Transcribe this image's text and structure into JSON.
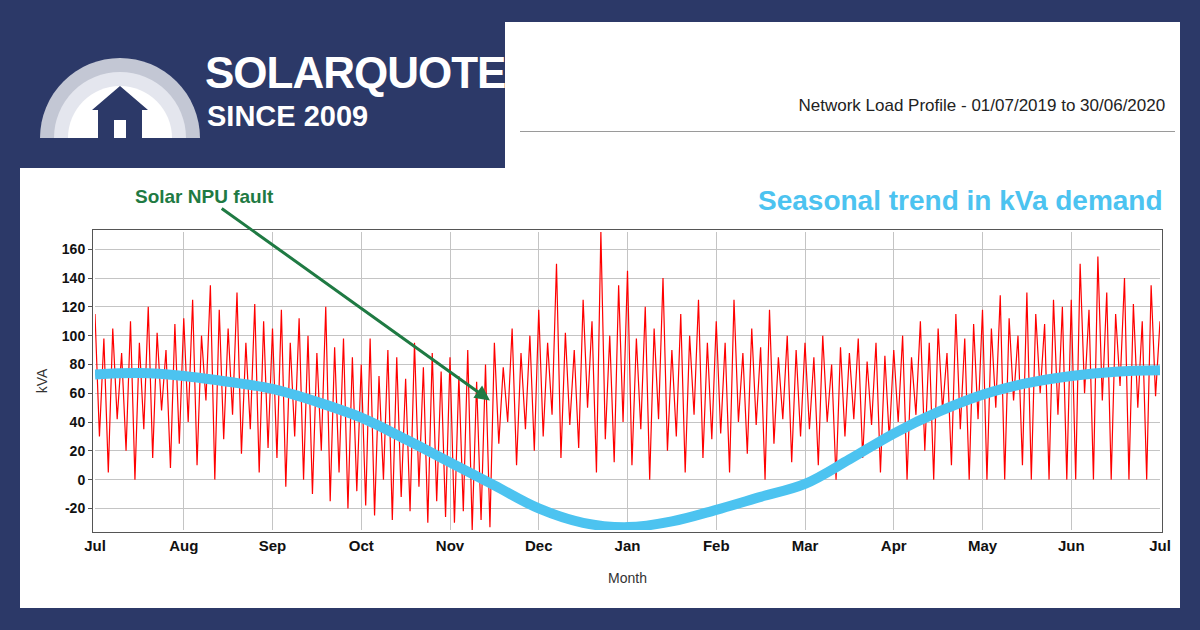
{
  "header": {
    "logo": "SOLARQUOTES®",
    "since": "SINCE 2009"
  },
  "chart_data": {
    "type": "line",
    "title": "Network Load Profile - 01/07/2019 to 30/06/2020",
    "x_label": "Month",
    "y_label": "kVA",
    "xlim": [
      0,
      12
    ],
    "xticks": [
      {
        "value": 0,
        "label": "Jul"
      },
      {
        "value": 1,
        "label": "Aug"
      },
      {
        "value": 2,
        "label": "Sep"
      },
      {
        "value": 3,
        "label": "Oct"
      },
      {
        "value": 4,
        "label": "Nov"
      },
      {
        "value": 5,
        "label": "Dec"
      },
      {
        "value": 6,
        "label": "Jan"
      },
      {
        "value": 7,
        "label": "Feb"
      },
      {
        "value": 8,
        "label": "Mar"
      },
      {
        "value": 9,
        "label": "Apr"
      },
      {
        "value": 10,
        "label": "May"
      },
      {
        "value": 11,
        "label": "Jun"
      },
      {
        "value": 12,
        "label": "Jul"
      }
    ],
    "ylim": [
      -35,
      172
    ],
    "yticks": [
      -20,
      0,
      20,
      40,
      60,
      80,
      100,
      120,
      140,
      160
    ],
    "grid": true,
    "series": [
      {
        "color": "#ff0000",
        "line_style": "solid",
        "x": [
          0,
          0.05,
          0.1,
          0.15,
          0.2,
          0.25,
          0.3,
          0.35,
          0.4,
          0.45,
          0.5,
          0.55,
          0.6,
          0.65,
          0.7,
          0.75,
          0.8,
          0.85,
          0.9,
          0.95,
          1,
          1.05,
          1.1,
          1.15,
          1.2,
          1.25,
          1.3,
          1.35,
          1.4,
          1.45,
          1.5,
          1.55,
          1.6,
          1.65,
          1.7,
          1.75,
          1.8,
          1.85,
          1.9,
          1.95,
          2,
          2.05,
          2.1,
          2.15,
          2.2,
          2.25,
          2.3,
          2.35,
          2.4,
          2.45,
          2.5,
          2.55,
          2.6,
          2.65,
          2.7,
          2.75,
          2.8,
          2.85,
          2.9,
          2.95,
          3,
          3.05,
          3.1,
          3.15,
          3.2,
          3.25,
          3.3,
          3.35,
          3.4,
          3.45,
          3.5,
          3.55,
          3.6,
          3.65,
          3.7,
          3.75,
          3.8,
          3.85,
          3.9,
          3.95,
          4,
          4.05,
          4.1,
          4.15,
          4.2,
          4.25,
          4.3,
          4.35,
          4.4,
          4.45,
          4.5,
          4.55,
          4.6,
          4.65,
          4.7,
          4.75,
          4.8,
          4.85,
          4.9,
          4.95,
          5,
          5.05,
          5.1,
          5.15,
          5.2,
          5.25,
          5.3,
          5.35,
          5.4,
          5.45,
          5.5,
          5.55,
          5.6,
          5.65,
          5.7,
          5.75,
          5.8,
          5.85,
          5.9,
          5.95,
          6,
          6.05,
          6.1,
          6.15,
          6.2,
          6.25,
          6.3,
          6.35,
          6.4,
          6.45,
          6.5,
          6.55,
          6.6,
          6.65,
          6.7,
          6.75,
          6.8,
          6.85,
          6.9,
          6.95,
          7,
          7.05,
          7.1,
          7.15,
          7.2,
          7.25,
          7.3,
          7.35,
          7.4,
          7.45,
          7.5,
          7.55,
          7.6,
          7.65,
          7.7,
          7.75,
          7.8,
          7.85,
          7.9,
          7.95,
          8,
          8.05,
          8.1,
          8.15,
          8.2,
          8.25,
          8.3,
          8.35,
          8.4,
          8.45,
          8.5,
          8.55,
          8.6,
          8.65,
          8.7,
          8.75,
          8.8,
          8.85,
          8.9,
          8.95,
          9,
          9.05,
          9.1,
          9.15,
          9.2,
          9.25,
          9.3,
          9.35,
          9.4,
          9.45,
          9.5,
          9.55,
          9.6,
          9.65,
          9.7,
          9.75,
          9.8,
          9.85,
          9.9,
          9.95,
          10,
          10.05,
          10.1,
          10.15,
          10.2,
          10.25,
          10.3,
          10.35,
          10.4,
          10.45,
          10.5,
          10.55,
          10.6,
          10.65,
          10.7,
          10.75,
          10.8,
          10.85,
          10.9,
          10.95,
          11,
          11.05,
          11.1,
          11.15,
          11.2,
          11.25,
          11.3,
          11.35,
          11.4,
          11.45,
          11.5,
          11.55,
          11.6,
          11.65,
          11.7,
          11.75,
          11.8,
          11.85,
          11.9,
          11.95,
          12
        ],
        "values": [
          115,
          30,
          98,
          5,
          105,
          42,
          88,
          20,
          110,
          0,
          95,
          35,
          120,
          15,
          102,
          48,
          90,
          8,
          108,
          25,
          112,
          40,
          125,
          10,
          100,
          55,
          135,
          0,
          118,
          28,
          105,
          45,
          130,
          18,
          95,
          35,
          122,
          5,
          110,
          22,
          105,
          15,
          118,
          -5,
          95,
          30,
          112,
          0,
          100,
          -10,
          88,
          20,
          120,
          -15,
          92,
          5,
          98,
          -20,
          85,
          -8,
          80,
          -18,
          98,
          -25,
          72,
          0,
          90,
          -28,
          85,
          -12,
          70,
          -22,
          95,
          -5,
          78,
          -30,
          88,
          -15,
          75,
          -26,
          85,
          -30,
          72,
          -22,
          90,
          -35,
          68,
          -28,
          80,
          -33,
          95,
          25,
          78,
          40,
          105,
          10,
          88,
          35,
          100,
          20,
          118,
          30,
          95,
          45,
          150,
          15,
          102,
          38,
          90,
          22,
          125,
          50,
          110,
          5,
          172,
          28,
          100,
          12,
          135,
          40,
          145,
          10,
          98,
          35,
          120,
          0,
          105,
          42,
          140,
          20,
          90,
          30,
          115,
          5,
          100,
          45,
          125,
          15,
          95,
          28,
          110,
          32,
          95,
          5,
          125,
          40,
          88,
          18,
          105,
          38,
          92,
          0,
          118,
          25,
          85,
          42,
          100,
          12,
          90,
          30,
          95,
          35,
          85,
          10,
          100,
          40,
          80,
          0,
          92,
          30,
          88,
          42,
          98,
          15,
          82,
          38,
          95,
          5,
          86,
          28,
          90,
          40,
          100,
          0,
          85,
          45,
          110,
          20,
          95,
          0,
          105,
          48,
          88,
          10,
          115,
          35,
          98,
          0,
          108,
          42,
          118,
          0,
          105,
          50,
          128,
          0,
          112,
          55,
          100,
          10,
          130,
          0,
          115,
          60,
          108,
          0,
          125,
          45,
          120,
          0,
          125,
          0,
          150,
          60,
          118,
          0,
          155,
          55,
          130,
          0,
          115,
          65,
          140,
          0,
          122,
          50,
          110,
          0,
          135,
          58,
          110
        ]
      },
      {
        "color": "#4cc3f0",
        "line_style": "smooth",
        "x": [
          0,
          0.5,
          1,
          1.5,
          2,
          2.5,
          3,
          3.5,
          4,
          4.5,
          5,
          5.5,
          6,
          6.5,
          7,
          7.5,
          8,
          8.5,
          9,
          9.5,
          10,
          10.5,
          11,
          11.5,
          12
        ],
        "values": [
          73,
          74,
          72,
          68,
          63,
          54,
          43,
          28,
          12,
          -4,
          -20,
          -30,
          -33,
          -29,
          -21,
          -12,
          -3,
          14,
          32,
          47,
          59,
          67,
          72,
          75,
          76
        ]
      }
    ],
    "annotations": [
      {
        "text": "Solar NPU fault",
        "x": 4.45,
        "y": 55,
        "color": "#1f7a43"
      },
      {
        "text": "Seasonal trend in kVa demand",
        "color": "#4cc3f0"
      }
    ]
  }
}
